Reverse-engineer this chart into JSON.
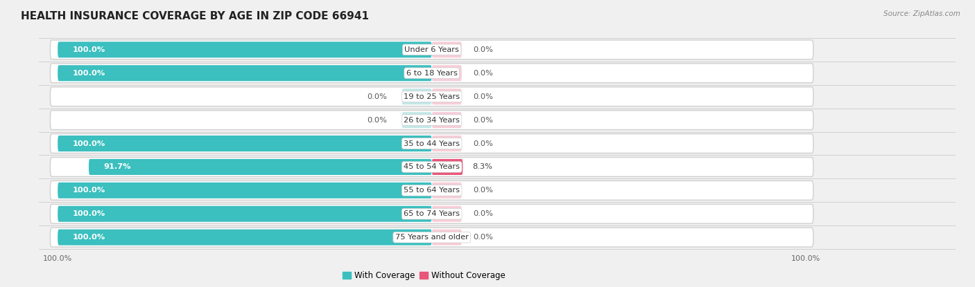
{
  "title": "HEALTH INSURANCE COVERAGE BY AGE IN ZIP CODE 66941",
  "source": "Source: ZipAtlas.com",
  "categories": [
    "Under 6 Years",
    "6 to 18 Years",
    "19 to 25 Years",
    "26 to 34 Years",
    "35 to 44 Years",
    "45 to 54 Years",
    "55 to 64 Years",
    "65 to 74 Years",
    "75 Years and older"
  ],
  "with_coverage": [
    100.0,
    100.0,
    0.0,
    0.0,
    100.0,
    91.7,
    100.0,
    100.0,
    100.0
  ],
  "without_coverage": [
    0.0,
    0.0,
    0.0,
    0.0,
    0.0,
    8.3,
    0.0,
    0.0,
    0.0
  ],
  "color_with": "#3bbfbf",
  "color_with_light": "#a8dede",
  "color_without_large": "#e8567a",
  "color_without_small": "#f4b8c8",
  "bg_color": "#f0f0f0",
  "bar_bg_color": "#ffffff",
  "row_bg_color": "#e8e8e8",
  "title_fontsize": 11,
  "label_fontsize": 8.2,
  "bar_height": 0.68,
  "x_max": 100,
  "legend_label_with": "With Coverage",
  "legend_label_without": "Without Coverage"
}
